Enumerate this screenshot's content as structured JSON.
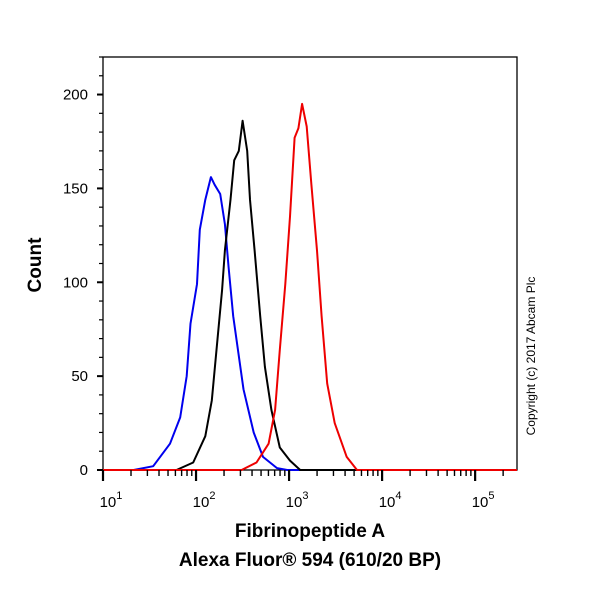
{
  "chart_data": {
    "type": "line",
    "title": "",
    "xlabel": "Fibrinopeptide A",
    "xlabel_line2": "Alexa Fluor® 594 (610/20 BP)",
    "ylabel": "Count",
    "x_scale": "log10",
    "xlim_log10": [
      1,
      5.45
    ],
    "ylim": [
      0,
      220
    ],
    "y_ticks": [
      {
        "value": 0,
        "label": "0"
      },
      {
        "value": 50,
        "label": "50"
      },
      {
        "value": 100,
        "label": "100"
      },
      {
        "value": 150,
        "label": "150"
      },
      {
        "value": 200,
        "label": "200"
      }
    ],
    "x_ticks": [
      {
        "exp": 1,
        "base": "10",
        "sup": "1"
      },
      {
        "exp": 2,
        "base": "10",
        "sup": "2"
      },
      {
        "exp": 3,
        "base": "10",
        "sup": "3"
      },
      {
        "exp": 4,
        "base": "10",
        "sup": "4"
      },
      {
        "exp": 5,
        "base": "10",
        "sup": "5"
      }
    ],
    "grid": false,
    "legend": "none",
    "series": [
      {
        "name": "blue",
        "color": "#0000ee",
        "x_log10": [
          1.0,
          1.33,
          1.54,
          1.72,
          1.83,
          1.9,
          1.94,
          2.01,
          2.04,
          2.1,
          2.16,
          2.2,
          2.26,
          2.31,
          2.35,
          2.4,
          2.51,
          2.62,
          2.72,
          2.87,
          2.98,
          5.45
        ],
        "y": [
          0,
          0,
          2,
          14,
          28,
          50,
          78,
          99,
          128,
          144,
          156,
          152,
          147,
          131,
          108,
          82,
          43,
          20,
          7,
          1,
          0,
          0
        ]
      },
      {
        "name": "black",
        "color": "#000000",
        "x_log10": [
          1.0,
          1.79,
          1.97,
          2.1,
          2.17,
          2.22,
          2.28,
          2.31,
          2.37,
          2.41,
          2.46,
          2.5,
          2.55,
          2.58,
          2.63,
          2.69,
          2.74,
          2.81,
          2.9,
          3.01,
          3.12,
          5.45
        ],
        "y": [
          0,
          0,
          4,
          18,
          37,
          64,
          96,
          117,
          144,
          165,
          170,
          186,
          170,
          144,
          117,
          82,
          55,
          32,
          12,
          5,
          0,
          0
        ]
      },
      {
        "name": "red",
        "color": "#ee0000",
        "x_log10": [
          1.0,
          2.49,
          2.65,
          2.78,
          2.85,
          2.9,
          2.96,
          3.01,
          3.06,
          3.1,
          3.14,
          3.19,
          3.24,
          3.3,
          3.35,
          3.41,
          3.49,
          3.62,
          3.73,
          5.45
        ],
        "y": [
          0,
          0,
          4,
          14,
          32,
          64,
          99,
          135,
          177,
          182,
          195,
          183,
          152,
          117,
          82,
          46,
          25,
          7,
          0,
          0
        ]
      }
    ],
    "annotations": [
      "Copyright (c) 2017 Abcam Plc"
    ]
  }
}
